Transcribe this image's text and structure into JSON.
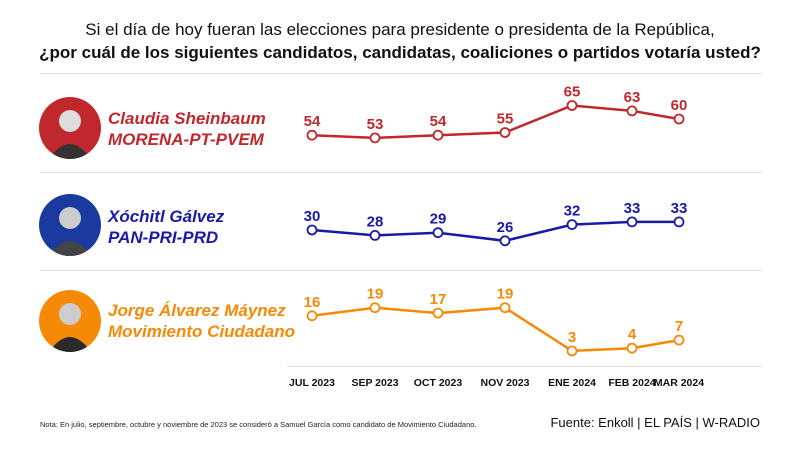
{
  "title_line1": "Si el día de hoy fueran las elecciones para presidente o presidenta de la República,",
  "title_line2": "¿por cuál de los siguientes candidatos, candidatas, coaliciones o partidos votaría usted?",
  "candidates": [
    {
      "name": "Claudia Sheinbaum",
      "party": "MORENA-PT-PVEM",
      "color": "#c0282d"
    },
    {
      "name": "Xóchitl Gálvez",
      "party": "PAN-PRI-PRD",
      "color": "#1a1aa6"
    },
    {
      "name": "Jorge Álvarez Máynez",
      "party": "Movimiento Ciudadano",
      "color": "#f58a07"
    }
  ],
  "note": "Nota: En julio, septiembre, octubre y noviembre de 2023 se consideró a Samuel García como candidato de Movimiento Ciudadano.",
  "source": "Fuente: Enkoll | EL PAÍS | W-RADIO",
  "chart_data": {
    "type": "line",
    "categories": [
      "JUL 2023",
      "SEP 2023",
      "OCT 2023",
      "NOV 2023",
      "ENE 2024",
      "FEB 2024",
      "MAR 2024"
    ],
    "series": [
      {
        "name": "Claudia Sheinbaum",
        "color": "#c0282d",
        "values": [
          54,
          53,
          54,
          55,
          65,
          63,
          60
        ]
      },
      {
        "name": "Xóchitl Gálvez",
        "color": "#1a1aa6",
        "values": [
          30,
          28,
          29,
          26,
          32,
          33,
          33
        ]
      },
      {
        "name": "Jorge Álvarez Máynez",
        "color": "#f58a07",
        "values": [
          16,
          19,
          17,
          19,
          3,
          4,
          7
        ]
      }
    ],
    "grid": false,
    "legend": "left"
  }
}
